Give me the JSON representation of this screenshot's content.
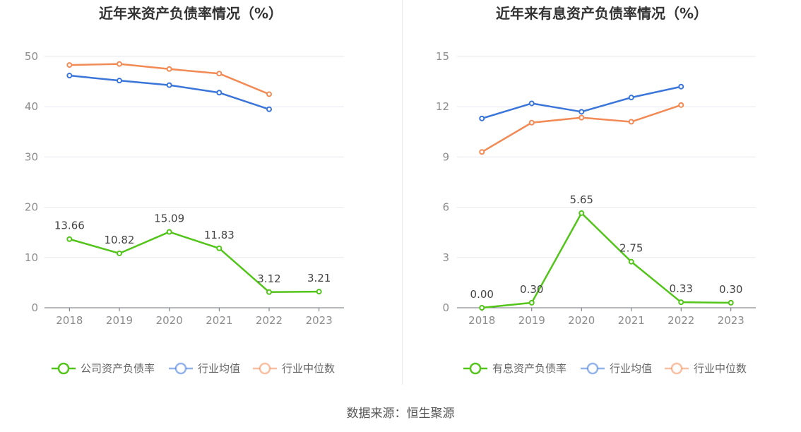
{
  "source": "数据来源：恒生聚源",
  "chart_data": [
    {
      "type": "line",
      "title": "近年来资产负债率情况（%）",
      "categories": [
        "2018",
        "2019",
        "2020",
        "2021",
        "2022",
        "2023"
      ],
      "ylim": [
        0,
        50
      ],
      "yticks": [
        0,
        10,
        20,
        30,
        40,
        50
      ],
      "grid": true,
      "legend_position": "bottom",
      "series": [
        {
          "name": "公司资产负债率",
          "color": "#52c41a",
          "values": [
            13.66,
            10.82,
            15.09,
            11.83,
            3.12,
            3.21
          ],
          "labels": [
            "13.66",
            "10.82",
            "15.09",
            "11.83",
            "3.12",
            "3.21"
          ]
        },
        {
          "name": "行业均值",
          "color": "#3a75d9",
          "values": [
            46.2,
            45.2,
            44.3,
            42.8,
            39.5,
            null
          ]
        },
        {
          "name": "行业中位数",
          "color": "#f28a55",
          "values": [
            48.3,
            48.5,
            47.5,
            46.6,
            42.5,
            null
          ]
        }
      ]
    },
    {
      "type": "line",
      "title": "近年来有息资产负债率情况（%）",
      "categories": [
        "2018",
        "2019",
        "2020",
        "2021",
        "2022",
        "2023"
      ],
      "ylim": [
        0,
        15
      ],
      "yticks": [
        0,
        3,
        6,
        9,
        12,
        15
      ],
      "grid": true,
      "legend_position": "bottom",
      "series": [
        {
          "name": "有息资产负债率",
          "color": "#52c41a",
          "values": [
            0.0,
            0.3,
            5.65,
            2.75,
            0.33,
            0.3
          ],
          "labels": [
            "0.00",
            "0.30",
            "5.65",
            "2.75",
            "0.33",
            "0.30"
          ]
        },
        {
          "name": "行业均值",
          "color": "#3a75d9",
          "values": [
            11.3,
            12.2,
            11.7,
            12.55,
            13.2,
            null
          ]
        },
        {
          "name": "行业中位数",
          "color": "#f28a55",
          "values": [
            9.3,
            11.05,
            11.35,
            11.1,
            12.1,
            null
          ]
        }
      ]
    }
  ]
}
